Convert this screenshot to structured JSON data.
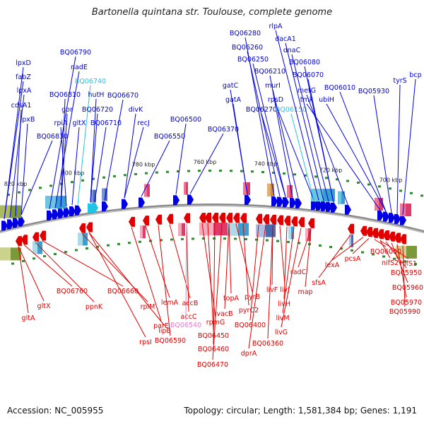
{
  "title": "Bartonella quintana str. Toulouse, complete genome",
  "footer": {
    "accession": "Accession: NC_005955",
    "summary": "Topology: circular; Length: 1,581,384 bp; Genes: 1,191"
  },
  "ticks": [
    "820 kbp",
    "800 kbp",
    "780 kbp",
    "760 kbp",
    "740 kbp",
    "720 kbp",
    "700 kbp"
  ],
  "colors": {
    "forward": "#0000e0",
    "reverse": "#e00000",
    "highlight_fwd": "#22c4e6",
    "highlight_rev": "#e87ad2"
  },
  "top_genes": [
    "lpxD",
    "fabZ",
    "lpxA",
    "cdsA1",
    "lpxB",
    "BQ06830",
    "BQ06790",
    "nadE",
    "BQ06810",
    "gor",
    "rpiA",
    "gltX",
    "BQ06740",
    "hutH",
    "BQ06720",
    "BQ06710",
    "BQ06670",
    "divK",
    "recJ",
    "BQ06550",
    "BQ06500",
    "BQ06370",
    "gatC",
    "gatA",
    "BQ06280",
    "BQ06260",
    "BQ06250",
    "BQ06270",
    "BQ06210",
    "murI",
    "rpsD",
    "BQ06150",
    "rlpA",
    "dacA1",
    "dnaC",
    "BQ06080",
    "BQ06070",
    "metG",
    "tmk",
    "ubiH",
    "BQ06010",
    "BQ05930",
    "tyrS",
    "bcp"
  ],
  "bottom_genes": [
    "gltA",
    "gltX",
    "BQ06760",
    "ppnK",
    "BQ06660",
    "rplM",
    "rpsI",
    "lipB",
    "parE",
    "lemA",
    "BQ06590",
    "accB",
    "accC",
    "BQ06540",
    "rpmG",
    "BQ06450",
    "BQ06460",
    "BQ06470",
    "vacB",
    "topA",
    "pyrB",
    "pyrC2",
    "BQ06400",
    "dprA",
    "BQ06360",
    "livF",
    "livJ",
    "livH",
    "livM",
    "livG",
    "radC",
    "map",
    "sfsA",
    "lexA",
    "pcsA",
    "BQ06000",
    "nifS2",
    "nifS1",
    "BQ05950",
    "BQ05960",
    "BQ05970",
    "BQ05990"
  ]
}
